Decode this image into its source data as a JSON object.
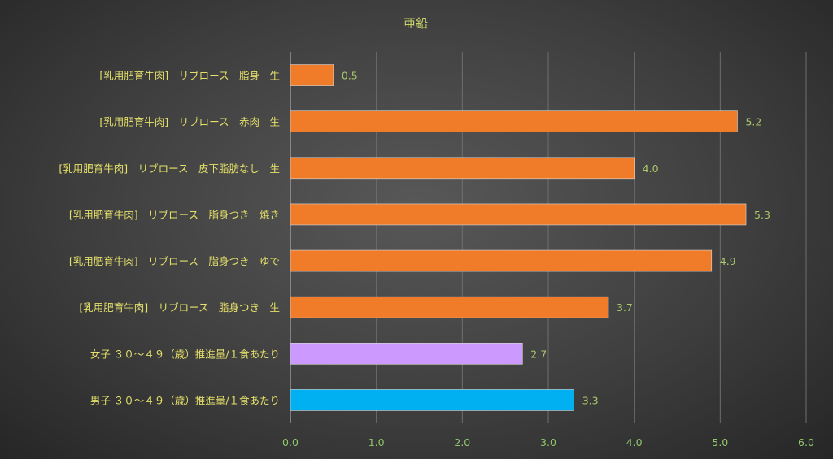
{
  "chart_data": {
    "type": "bar",
    "orientation": "horizontal",
    "title": "亜鉛",
    "categories": [
      "[乳用肥育牛肉]　リブロース　脂身　生",
      "[乳用肥育牛肉]　リブロース　赤肉　生",
      "[乳用肥育牛肉]　リブロース　皮下脂肪なし　生",
      "[乳用肥育牛肉]　リブロース　脂身つき　焼き",
      "[乳用肥育牛肉]　リブロース　脂身つき　ゆで",
      "[乳用肥育牛肉]　リブロース　脂身つき　生",
      "女子 ３０～４９（歳）推進量/１食あたり",
      "男子 ３０～４９（歳）推進量/１食あたり"
    ],
    "values": [
      0.5,
      5.2,
      4.0,
      5.3,
      4.9,
      3.7,
      2.7,
      3.3
    ],
    "value_labels": [
      "0.5",
      "5.2",
      "4.0",
      "5.3",
      "4.9",
      "3.7",
      "2.7",
      "3.3"
    ],
    "bar_colors": [
      "#f07c2a",
      "#f07c2a",
      "#f07c2a",
      "#f07c2a",
      "#f07c2a",
      "#f07c2a",
      "#cc99ff",
      "#00b0f0"
    ],
    "xlim": [
      0,
      6
    ],
    "xticks": [
      "0.0",
      "1.0",
      "2.0",
      "3.0",
      "4.0",
      "5.0",
      "6.0"
    ],
    "grid": "vertical",
    "legend": "none"
  }
}
